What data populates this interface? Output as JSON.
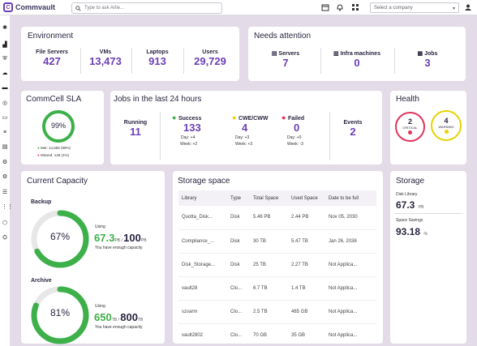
{
  "app": {
    "name": "Commvault",
    "search_placeholder": "Type to ask Arlie...",
    "company_placeholder": "Select a company"
  },
  "environment": {
    "title": "Environment",
    "stats": [
      {
        "label": "File Servers",
        "value": "427"
      },
      {
        "label": "VMs",
        "value": "13,473"
      },
      {
        "label": "Laptops",
        "value": "913"
      },
      {
        "label": "Users",
        "value": "29,729"
      }
    ]
  },
  "attention": {
    "title": "Needs attention",
    "stats": [
      {
        "label": "Servers",
        "value": "7"
      },
      {
        "label": "Infra machines",
        "value": "0"
      },
      {
        "label": "Jobs",
        "value": "3"
      }
    ]
  },
  "sla": {
    "title": "CommCell SLA",
    "percent": "99%",
    "met": "Met: 14,665 (99%)",
    "missed": "Missed: 146 (1%)",
    "fraction": 0.99
  },
  "jobs": {
    "title": "Jobs in the last 24 hours",
    "running": {
      "label": "Running",
      "value": "11"
    },
    "success": {
      "label": "Success",
      "value": "133",
      "day": "Day: +4",
      "week": "Week: +2"
    },
    "cwe": {
      "label": "CWE/CWW",
      "value": "4",
      "day": "Day: +3",
      "week": "Week: +3"
    },
    "failed": {
      "label": "Failed",
      "value": "0",
      "day": "Day: +0",
      "week": "Week: -3"
    },
    "events": {
      "label": "Events",
      "value": "2"
    }
  },
  "health": {
    "title": "Health",
    "critical": {
      "count": "2",
      "label": "CRITICAL"
    },
    "warning": {
      "count": "4",
      "label": "WARNING"
    }
  },
  "capacity": {
    "title": "Current Capacity",
    "backup": {
      "label": "Backup",
      "percent": "67%",
      "fraction": 0.67,
      "using_label": "Using",
      "used": "67.3",
      "used_unit": "PB",
      "total": "100",
      "total_unit": "PB",
      "note": "You have enough capacity"
    },
    "archive": {
      "label": "Archive",
      "percent": "81%",
      "fraction": 0.81,
      "using_label": "Using",
      "used": "650",
      "used_unit": "TB",
      "total": "800",
      "total_unit": "TB",
      "note": "You have enough capacity"
    }
  },
  "storage_space": {
    "title": "Storage space",
    "headers": [
      "Library",
      "Type",
      "Total Space",
      "Used Space",
      "Date to be full"
    ],
    "rows": [
      [
        "Quotta_Disk...",
        "Disk",
        "5.46 PB",
        "2.44 PB",
        "Nov 05, 2030"
      ],
      [
        "Compliance_...",
        "Disk",
        "30 TB",
        "5.47 TB",
        "Jan 26, 2038"
      ],
      [
        "Disk_Storage...",
        "Disk",
        "25 TB",
        "2.27 TB",
        "Not Applica..."
      ],
      [
        "vault28",
        "Clo...",
        "6.7 TB",
        "1.4 TB",
        "Not Applica..."
      ],
      [
        "szvarm",
        "Clo...",
        "2.5 TB",
        "465 GB",
        "Not Applica..."
      ],
      [
        "vault2802",
        "Clo...",
        "70 GB",
        "35 GB",
        "Not Applica..."
      ]
    ]
  },
  "storage": {
    "title": "Storage",
    "disk_label": "Disk Library",
    "disk_value": "67.3",
    "disk_unit": "PB",
    "savings_label": "Space Savings",
    "savings_value": "93.18",
    "savings_unit": "%"
  },
  "colors": {
    "accent": "#6c3fb5",
    "green": "#3db04a",
    "yellow": "#e8d200",
    "red": "#e0345c"
  }
}
